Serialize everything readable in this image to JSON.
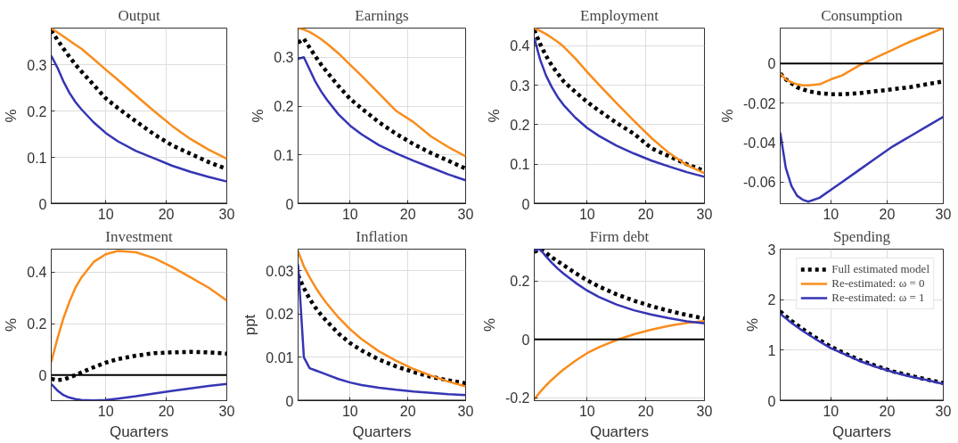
{
  "chart_data": [
    {
      "type": "line",
      "title": "Output",
      "ylabel": "%",
      "x": [
        1,
        2,
        3,
        4,
        5,
        6,
        8,
        10,
        12,
        15,
        18,
        21,
        24,
        27,
        30
      ],
      "xlim": [
        1,
        30
      ],
      "xticks": [
        10,
        20,
        30
      ],
      "ylim": [
        0,
        0.38
      ],
      "yticks": [
        0,
        0.1,
        0.2,
        0.3
      ],
      "grid": true,
      "ref_lines": [
        {
          "axis": "y",
          "value": 0,
          "color": "#000000"
        }
      ],
      "series": [
        {
          "color": "#000000",
          "line_style": "dotted",
          "values": [
            0.375,
            0.355,
            0.336,
            0.318,
            0.301,
            0.286,
            0.257,
            0.228,
            0.207,
            0.178,
            0.15,
            0.126,
            0.108,
            0.09,
            0.075
          ]
        },
        {
          "color": "#f98c1c",
          "line_style": "solid",
          "values": [
            0.38,
            0.371,
            0.362,
            0.353,
            0.344,
            0.335,
            0.313,
            0.29,
            0.268,
            0.234,
            0.2,
            0.168,
            0.14,
            0.117,
            0.097
          ]
        },
        {
          "color": "#3535b5",
          "line_style": "solid",
          "values": [
            0.32,
            0.295,
            0.265,
            0.24,
            0.22,
            0.204,
            0.176,
            0.153,
            0.135,
            0.114,
            0.098,
            0.082,
            0.069,
            0.058,
            0.048
          ]
        }
      ]
    },
    {
      "type": "line",
      "title": "Earnings",
      "ylabel": "%",
      "x": [
        1,
        2,
        3,
        4,
        5,
        6,
        8,
        10,
        12,
        15,
        18,
        21,
        24,
        27,
        30
      ],
      "xlim": [
        1,
        30
      ],
      "xticks": [
        10,
        20,
        30
      ],
      "ylim": [
        0,
        0.36
      ],
      "yticks": [
        0,
        0.1,
        0.2,
        0.3
      ],
      "grid": true,
      "ref_lines": [
        {
          "axis": "y",
          "value": 0,
          "color": "#000000"
        }
      ],
      "series": [
        {
          "color": "#000000",
          "line_style": "dotted",
          "values": [
            0.33,
            0.338,
            0.32,
            0.302,
            0.285,
            0.27,
            0.241,
            0.215,
            0.195,
            0.167,
            0.143,
            0.122,
            0.104,
            0.088,
            0.072
          ]
        },
        {
          "color": "#f98c1c",
          "line_style": "solid",
          "values": [
            0.36,
            0.357,
            0.352,
            0.345,
            0.337,
            0.328,
            0.308,
            0.285,
            0.262,
            0.226,
            0.19,
            0.167,
            0.138,
            0.116,
            0.097
          ]
        },
        {
          "color": "#3535b5",
          "line_style": "solid",
          "values": [
            0.297,
            0.3,
            0.275,
            0.25,
            0.23,
            0.213,
            0.183,
            0.16,
            0.142,
            0.12,
            0.103,
            0.088,
            0.074,
            0.06,
            0.048
          ]
        }
      ]
    },
    {
      "type": "line",
      "title": "Employment",
      "ylabel": "%",
      "x": [
        1,
        2,
        3,
        4,
        5,
        6,
        8,
        10,
        12,
        15,
        18,
        21,
        24,
        27,
        30
      ],
      "xlim": [
        1,
        30
      ],
      "xticks": [
        10,
        20,
        30
      ],
      "ylim": [
        0,
        0.445
      ],
      "yticks": [
        0,
        0.1,
        0.2,
        0.3,
        0.4
      ],
      "grid": true,
      "ref_lines": [
        {
          "axis": "y",
          "value": 0,
          "color": "#000000"
        }
      ],
      "series": [
        {
          "color": "#000000",
          "line_style": "dotted",
          "values": [
            0.44,
            0.405,
            0.375,
            0.35,
            0.33,
            0.31,
            0.283,
            0.258,
            0.236,
            0.205,
            0.177,
            0.14,
            0.12,
            0.1,
            0.083
          ]
        },
        {
          "color": "#f98c1c",
          "line_style": "solid",
          "values": [
            0.445,
            0.438,
            0.43,
            0.42,
            0.41,
            0.398,
            0.368,
            0.334,
            0.302,
            0.255,
            0.21,
            0.166,
            0.128,
            0.098,
            0.077
          ]
        },
        {
          "color": "#3535b5",
          "line_style": "solid",
          "values": [
            0.42,
            0.365,
            0.325,
            0.295,
            0.27,
            0.25,
            0.218,
            0.192,
            0.172,
            0.147,
            0.127,
            0.109,
            0.094,
            0.08,
            0.068
          ]
        }
      ]
    },
    {
      "type": "line",
      "title": "Consumption",
      "x": [
        1,
        2,
        3,
        4,
        5,
        6,
        8,
        10,
        12,
        15,
        18,
        21,
        24,
        27,
        30
      ],
      "xlim": [
        1,
        30
      ],
      "xticks": [
        10,
        20,
        30
      ],
      "ylim": [
        -0.071,
        0.018
      ],
      "yticks": [
        -0.06,
        -0.04,
        -0.02,
        0
      ],
      "ylabel": "%",
      "grid": true,
      "ref_lines": [
        {
          "axis": "y",
          "value": 0,
          "color": "#000000"
        }
      ],
      "series": [
        {
          "color": "#000000",
          "line_style": "dotted",
          "values": [
            -0.005,
            -0.008,
            -0.01,
            -0.012,
            -0.013,
            -0.014,
            -0.015,
            -0.0155,
            -0.0155,
            -0.015,
            -0.014,
            -0.013,
            -0.012,
            -0.0105,
            -0.009
          ]
        },
        {
          "color": "#f98c1c",
          "line_style": "solid",
          "values": [
            -0.005,
            -0.008,
            -0.0095,
            -0.0105,
            -0.011,
            -0.011,
            -0.0105,
            -0.008,
            -0.006,
            -0.001,
            0.003,
            0.007,
            0.011,
            0.0145,
            0.018
          ]
        },
        {
          "color": "#3535b5",
          "line_style": "solid",
          "values": [
            -0.035,
            -0.053,
            -0.062,
            -0.067,
            -0.069,
            -0.07,
            -0.068,
            -0.064,
            -0.06,
            -0.054,
            -0.048,
            -0.042,
            -0.037,
            -0.032,
            -0.027
          ]
        }
      ]
    },
    {
      "type": "line",
      "title": "Investment",
      "xlabel": "Quarters",
      "ylabel": "%",
      "x": [
        1,
        2,
        3,
        4,
        5,
        6,
        8,
        10,
        12,
        15,
        18,
        21,
        24,
        27,
        30
      ],
      "xlim": [
        1,
        30
      ],
      "xticks": [
        10,
        20,
        30
      ],
      "ylim": [
        -0.1,
        0.49
      ],
      "yticks": [
        0,
        0.2,
        0.4
      ],
      "grid": true,
      "ref_lines": [
        {
          "axis": "y",
          "value": 0,
          "color": "#000000"
        }
      ],
      "series": [
        {
          "color": "#000000",
          "line_style": "dotted",
          "values": [
            -0.015,
            -0.02,
            -0.018,
            -0.01,
            0,
            0.01,
            0.03,
            0.048,
            0.062,
            0.075,
            0.085,
            0.088,
            0.09,
            0.088,
            0.083
          ]
        },
        {
          "color": "#f98c1c",
          "line_style": "solid",
          "values": [
            0.05,
            0.14,
            0.22,
            0.285,
            0.34,
            0.38,
            0.44,
            0.47,
            0.483,
            0.478,
            0.455,
            0.42,
            0.38,
            0.34,
            0.29
          ]
        },
        {
          "color": "#3535b5",
          "line_style": "solid",
          "values": [
            -0.035,
            -0.06,
            -0.078,
            -0.088,
            -0.094,
            -0.097,
            -0.099,
            -0.097,
            -0.092,
            -0.083,
            -0.072,
            -0.062,
            -0.052,
            -0.043,
            -0.035
          ]
        }
      ]
    },
    {
      "type": "line",
      "title": "Inflation",
      "xlabel": "Quarters",
      "ylabel": "ppt",
      "x": [
        1,
        2,
        3,
        4,
        5,
        6,
        8,
        10,
        12,
        15,
        18,
        21,
        24,
        27,
        30
      ],
      "xlim": [
        1,
        30
      ],
      "xticks": [
        10,
        20,
        30
      ],
      "ylim": [
        0,
        0.035
      ],
      "yticks": [
        0,
        0.01,
        0.02,
        0.03
      ],
      "grid": true,
      "ref_lines": [
        {
          "axis": "y",
          "value": 0,
          "color": "#000000"
        }
      ],
      "series": [
        {
          "color": "#000000",
          "line_style": "dotted",
          "values": [
            0.029,
            0.026,
            0.0235,
            0.0215,
            0.0198,
            0.0183,
            0.0155,
            0.0133,
            0.0116,
            0.0095,
            0.0079,
            0.0066,
            0.0055,
            0.0047,
            0.004
          ]
        },
        {
          "color": "#f98c1c",
          "line_style": "solid",
          "values": [
            0.0345,
            0.031,
            0.0285,
            0.0262,
            0.0242,
            0.0224,
            0.0192,
            0.0165,
            0.0142,
            0.0114,
            0.0092,
            0.0073,
            0.0058,
            0.0044,
            0.0033
          ]
        },
        {
          "color": "#3535b5",
          "line_style": "solid",
          "values": [
            0.0315,
            0.01,
            0.0075,
            0.007,
            0.0065,
            0.006,
            0.005,
            0.0042,
            0.0036,
            0.003,
            0.0025,
            0.0021,
            0.0018,
            0.0015,
            0.0013
          ]
        }
      ]
    },
    {
      "type": "line",
      "title": "Firm debt",
      "xlabel": "Quarters",
      "ylabel": "%",
      "x": [
        1,
        2,
        3,
        4,
        5,
        6,
        8,
        10,
        12,
        15,
        18,
        21,
        24,
        27,
        30
      ],
      "xlim": [
        1,
        30
      ],
      "xticks": [
        10,
        20,
        30
      ],
      "ylim": [
        -0.21,
        0.31
      ],
      "yticks": [
        -0.2,
        0,
        0.2
      ],
      "grid": true,
      "ref_lines": [
        {
          "axis": "y",
          "value": 0,
          "color": "#000000"
        }
      ],
      "series": [
        {
          "color": "#000000",
          "line_style": "dotted",
          "values": [
            0.3,
            0.31,
            0.297,
            0.282,
            0.268,
            0.255,
            0.228,
            0.203,
            0.182,
            0.155,
            0.133,
            0.114,
            0.098,
            0.084,
            0.072
          ]
        },
        {
          "color": "#f98c1c",
          "line_style": "solid",
          "values": [
            -0.205,
            -0.18,
            -0.158,
            -0.138,
            -0.12,
            -0.103,
            -0.073,
            -0.047,
            -0.027,
            -0.002,
            0.018,
            0.034,
            0.047,
            0.057,
            0.063
          ]
        },
        {
          "color": "#3535b5",
          "line_style": "solid",
          "values": [
            0.305,
            0.31,
            0.285,
            0.263,
            0.243,
            0.226,
            0.195,
            0.168,
            0.146,
            0.12,
            0.1,
            0.085,
            0.073,
            0.062,
            0.055
          ]
        }
      ]
    },
    {
      "type": "line",
      "title": "Spending",
      "xlabel": "Quarters",
      "ylabel": "%",
      "x": [
        1,
        2,
        3,
        4,
        5,
        6,
        8,
        10,
        12,
        15,
        18,
        21,
        24,
        27,
        30
      ],
      "xlim": [
        1,
        30
      ],
      "xticks": [
        10,
        20,
        30
      ],
      "ylim": [
        0,
        3
      ],
      "yticks": [
        0,
        1,
        2,
        3
      ],
      "grid": true,
      "legend": "top right",
      "ref_lines": [
        {
          "axis": "y",
          "value": 0,
          "color": "#000000"
        }
      ],
      "series": [
        {
          "name": "Full estimated model",
          "color": "#000000",
          "line_style": "dotted",
          "values": [
            1.77,
            1.67,
            1.58,
            1.5,
            1.42,
            1.34,
            1.2,
            1.07,
            0.96,
            0.81,
            0.69,
            0.58,
            0.5,
            0.42,
            0.35
          ]
        },
        {
          "name": "Re-estimated: ω = 0",
          "color": "#f98c1c",
          "line_style": "solid",
          "values": [
            null,
            null,
            null,
            null,
            null,
            null,
            null,
            null,
            null,
            null,
            null,
            null,
            null,
            null,
            null
          ]
        },
        {
          "name": "Re-estimated: ω = 1",
          "color": "#3535b5",
          "line_style": "solid",
          "values": [
            1.72,
            1.63,
            1.54,
            1.46,
            1.38,
            1.31,
            1.17,
            1.04,
            0.94,
            0.79,
            0.67,
            0.57,
            0.48,
            0.41,
            0.33
          ]
        }
      ]
    }
  ]
}
